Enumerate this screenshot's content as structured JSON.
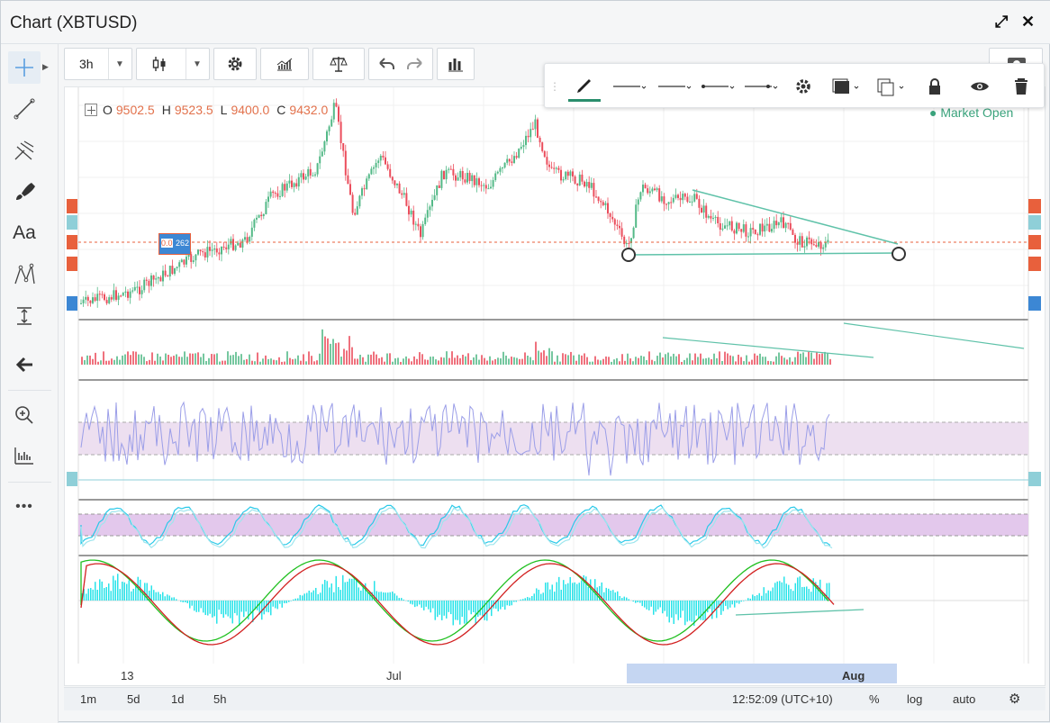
{
  "window": {
    "title": "Chart (XBTUSD)",
    "expand_icon": "expand-icon",
    "close_icon": "close-icon"
  },
  "toolbar": {
    "interval": "3h",
    "buttons": [
      "chart-type-candles-icon",
      "settings-gear-icon",
      "indicators-icon",
      "compare-balance-icon",
      "undo-icon",
      "redo-icon",
      "bars-icon"
    ]
  },
  "left_tools": [
    "crosshair-icon",
    "trendline-icon",
    "pitchfork-icon",
    "brush-icon",
    "text-icon",
    "pattern-icon",
    "measure-icon",
    "back-arrow-icon",
    "zoom-in-icon",
    "ruler-icon",
    "more-icon"
  ],
  "left_tools_text": {
    "text_tool": "Aa",
    "more": "•••"
  },
  "ohlc": {
    "o_label": "O",
    "o_value": "9502.5",
    "h_label": "H",
    "h_value": "9523.5",
    "l_label": "L",
    "l_value": "9400.0",
    "c_label": "C",
    "c_value": "9432.0"
  },
  "market_status": "● Market Open",
  "order_tag": {
    "qty_text": "0.0",
    "value_text": "262"
  },
  "draw_toolbar": [
    "pencil-icon",
    "line-style-1",
    "line-style-2",
    "line-style-3",
    "line-style-4",
    "gear-icon",
    "fill-icon",
    "clone-icon",
    "lock-icon",
    "eye-icon",
    "trash-icon"
  ],
  "x_axis": {
    "labels": [
      "13",
      "Jul",
      "Aug"
    ]
  },
  "bottom_bar": {
    "ranges": [
      "1m",
      "5d",
      "1d",
      "5h"
    ],
    "time": "12:52:09 (UTC+10)",
    "pct": "%",
    "log": "log",
    "auto": "auto",
    "settings_icon": "gear-icon"
  },
  "colors": {
    "up": "#53b987",
    "down": "#eb4d5c",
    "rsi": "#9b9ee8",
    "band_rsi": "#eddff0",
    "band_stoch": "#e3c8ec",
    "macd_hist": "#29e3e9",
    "trend": "#5fc2a9",
    "accent_blue": "#3c87d4",
    "accent_red": "#e8603c"
  }
}
